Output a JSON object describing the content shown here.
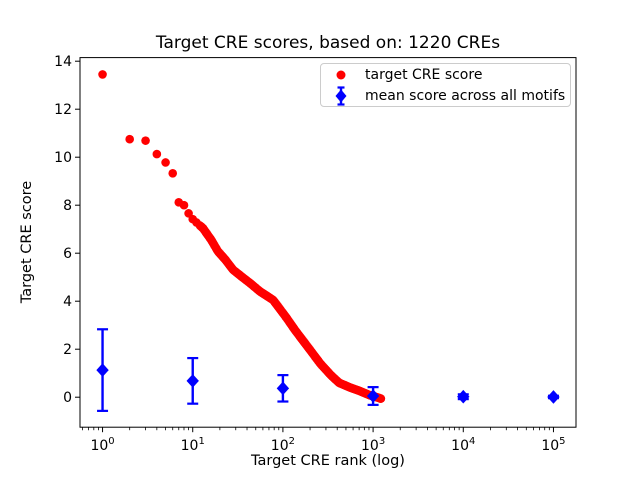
{
  "colors": {
    "red": "#ff0000",
    "blue": "#0000ff",
    "frame": "#000000",
    "legend_border": "#cccccc",
    "background": "#ffffff"
  },
  "legend": {
    "items": [
      {
        "label": "target CRE score",
        "marker": "circle",
        "color": "#ff0000"
      },
      {
        "label": "mean score across all motifs",
        "marker": "diamond-errorbar",
        "color": "#0000ff"
      }
    ]
  },
  "chart_data": {
    "type": "scatter",
    "title": "Target CRE scores, based on: 1220 CREs",
    "xlabel": "Target CRE rank (log)",
    "ylabel": "Target CRE score",
    "x_scale": "log",
    "xlim_log10": [
      -0.25,
      5.25
    ],
    "ylim": [
      -1.25,
      14.15
    ],
    "x_ticks": [
      {
        "value": 1,
        "base": "10",
        "exp": "0"
      },
      {
        "value": 10,
        "base": "10",
        "exp": "1"
      },
      {
        "value": 100,
        "base": "10",
        "exp": "2"
      },
      {
        "value": 1000,
        "base": "10",
        "exp": "3"
      },
      {
        "value": 10000,
        "base": "10",
        "exp": "4"
      },
      {
        "value": 100000,
        "base": "10",
        "exp": "5"
      }
    ],
    "x_minor_tick_decades": [
      -1,
      0,
      1,
      2,
      3,
      4,
      5
    ],
    "y_ticks": [
      0,
      2,
      4,
      6,
      8,
      10,
      12,
      14
    ],
    "n_total_cres": 1220,
    "series": [
      {
        "name": "target CRE score",
        "type": "scatter",
        "marker": "circle",
        "color": "#ff0000",
        "marker_radius_px": 4.3,
        "rank_range": [
          1,
          1220
        ],
        "anchors_rank_score": [
          [
            1,
            13.45
          ],
          [
            2,
            10.75
          ],
          [
            3,
            10.69
          ],
          [
            4,
            10.13
          ],
          [
            5,
            9.78
          ],
          [
            6,
            9.33
          ],
          [
            7,
            8.12
          ],
          [
            8,
            8.0
          ],
          [
            9,
            7.66
          ],
          [
            10,
            7.42
          ],
          [
            11,
            7.28
          ],
          [
            13,
            7.04
          ],
          [
            16,
            6.56
          ],
          [
            19,
            6.08
          ],
          [
            23,
            5.73
          ],
          [
            28,
            5.31
          ],
          [
            35,
            5.02
          ],
          [
            43,
            4.76
          ],
          [
            56,
            4.4
          ],
          [
            78,
            4.05
          ],
          [
            110,
            3.3
          ],
          [
            136,
            2.8
          ],
          [
            200,
            1.97
          ],
          [
            260,
            1.4
          ],
          [
            340,
            0.92
          ],
          [
            420,
            0.6
          ],
          [
            560,
            0.4
          ],
          [
            700,
            0.27
          ],
          [
            925,
            0.08
          ],
          [
            1100,
            0.0
          ],
          [
            1220,
            -0.06
          ]
        ]
      },
      {
        "name": "mean score across all motifs",
        "type": "errorbar",
        "marker": "diamond",
        "color": "#0000ff",
        "points": [
          {
            "x": 1,
            "y": 1.13,
            "yerr": 1.7
          },
          {
            "x": 10,
            "y": 0.68,
            "yerr": 0.95
          },
          {
            "x": 100,
            "y": 0.37,
            "yerr": 0.55
          },
          {
            "x": 1000,
            "y": 0.05,
            "yerr": 0.37
          },
          {
            "x": 10000,
            "y": 0.02,
            "yerr": 0.1
          },
          {
            "x": 100000,
            "y": 0.01,
            "yerr": 0.05
          }
        ]
      }
    ]
  }
}
